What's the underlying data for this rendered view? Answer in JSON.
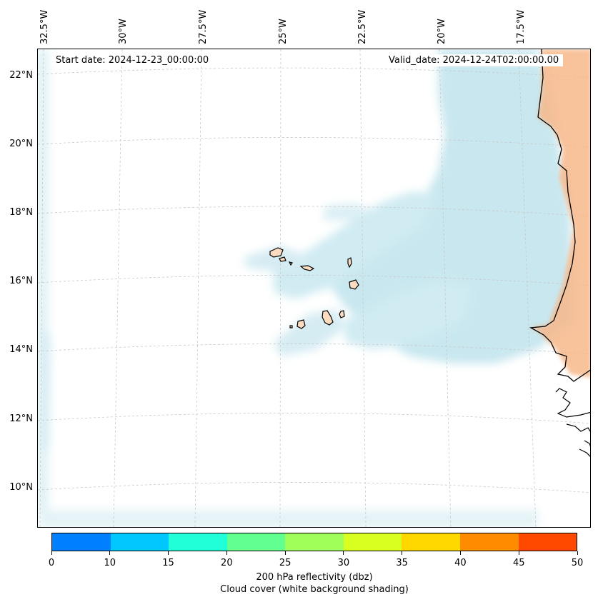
{
  "map": {
    "start_date_text": "Start date: 2024-12-23_00:00:00",
    "valid_date_text": "Valid_date: 2024-12-24T02:00:00.00",
    "longitude_labels": [
      "32.5°W",
      "30°W",
      "27.5°W",
      "25°W",
      "22.5°W",
      "20°W",
      "17.5°W"
    ],
    "latitude_labels": [
      "22°N",
      "20°N",
      "18°N",
      "16°N",
      "14°N",
      "12°N",
      "10°N"
    ],
    "colors": {
      "cloud": "#bfe3ec",
      "land": "#fbdcc0",
      "land_orange": "#f7b88a",
      "coast": "#000000",
      "grid": "#c8c8c8"
    }
  },
  "colorbar": {
    "ticks": [
      "0",
      "10",
      "15",
      "20",
      "25",
      "30",
      "35",
      "40",
      "45",
      "50"
    ],
    "colors": [
      "#0080ff",
      "#00c8ff",
      "#20ffd8",
      "#60ff90",
      "#a0ff58",
      "#d8ff20",
      "#ffd800",
      "#ff8c00",
      "#ff4800"
    ],
    "label_line1": "200 hPa reflectivity (dbz)",
    "label_line2": "Cloud cover (white background shading)"
  }
}
